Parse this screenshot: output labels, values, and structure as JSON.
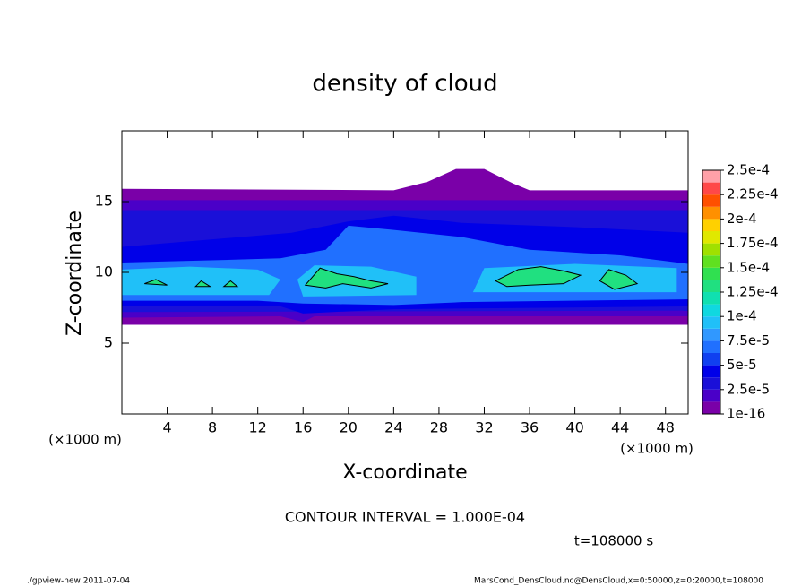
{
  "chart_data": {
    "type": "contour",
    "title": "density of cloud",
    "xlabel": "X-coordinate",
    "ylabel": "Z-coordinate",
    "x_unit": "(×1000 m)",
    "y_unit": "(×1000 m)",
    "xlim": [
      0,
      50
    ],
    "ylim": [
      0,
      20
    ],
    "xticks": [
      4,
      8,
      12,
      16,
      20,
      24,
      28,
      32,
      36,
      40,
      44,
      48
    ],
    "yticks": [
      5,
      10,
      15
    ],
    "colorbar": {
      "levels": [
        {
          "value": 1e-16,
          "label": "1e-16"
        },
        {
          "value": 2.5e-05,
          "label": "2.5e-5"
        },
        {
          "value": 5e-05,
          "label": "5e-5"
        },
        {
          "value": 7.5e-05,
          "label": "7.5e-5"
        },
        {
          "value": 0.0001,
          "label": "1e-4"
        },
        {
          "value": 0.000125,
          "label": "1.25e-4"
        },
        {
          "value": 0.00015,
          "label": "1.5e-4"
        },
        {
          "value": 0.000175,
          "label": "1.75e-4"
        },
        {
          "value": 0.0002,
          "label": "2e-4"
        },
        {
          "value": 0.000225,
          "label": "2.25e-4"
        },
        {
          "value": 0.00025,
          "label": "2.5e-4"
        }
      ],
      "colors": [
        "#7a00a8",
        "#4a00c8",
        "#1a10d8",
        "#0000e8",
        "#1040f0",
        "#2070ff",
        "#3098ff",
        "#20c0f8",
        "#10d8e0",
        "#10e0b0",
        "#20e080",
        "#30e050",
        "#60e020",
        "#a0e000",
        "#e0e800",
        "#ffd000",
        "#ff9000",
        "#ff5000",
        "#ff4848",
        "#ffa0a8"
      ]
    },
    "annotations": {
      "contour_interval": "CONTOUR INTERVAL = 1.000E-04",
      "time": "t=108000 s",
      "program": "./gpview-new   2011-07-04",
      "source": "MarsCond_DensCloud.nc@DensCloud,x=0:50000,z=0:20000,t=108000"
    }
  }
}
